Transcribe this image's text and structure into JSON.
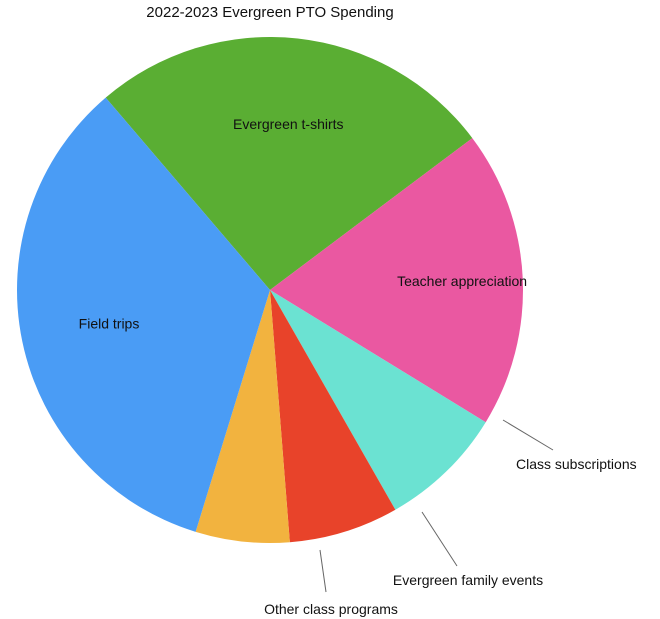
{
  "chart_data": {
    "type": "pie",
    "title": "2022-2023 Evergreen PTO Spending",
    "slices": [
      {
        "label": "Evergreen t-shirts",
        "value": 26,
        "color": "#5AAE33"
      },
      {
        "label": "Teacher appreciation",
        "value": 19,
        "color": "#EA58A1"
      },
      {
        "label": "Class subscriptions",
        "value": 8,
        "color": "#6BE2D2"
      },
      {
        "label": "Evergreen family events",
        "value": 7,
        "color": "#E8432A"
      },
      {
        "label": "Other class programs",
        "value": 6,
        "color": "#F2B33F"
      },
      {
        "label": "Field trips",
        "value": 34,
        "color": "#4A9CF5"
      }
    ],
    "start_angle_deg": -40.5,
    "direction": "clockwise",
    "legend": "none"
  }
}
